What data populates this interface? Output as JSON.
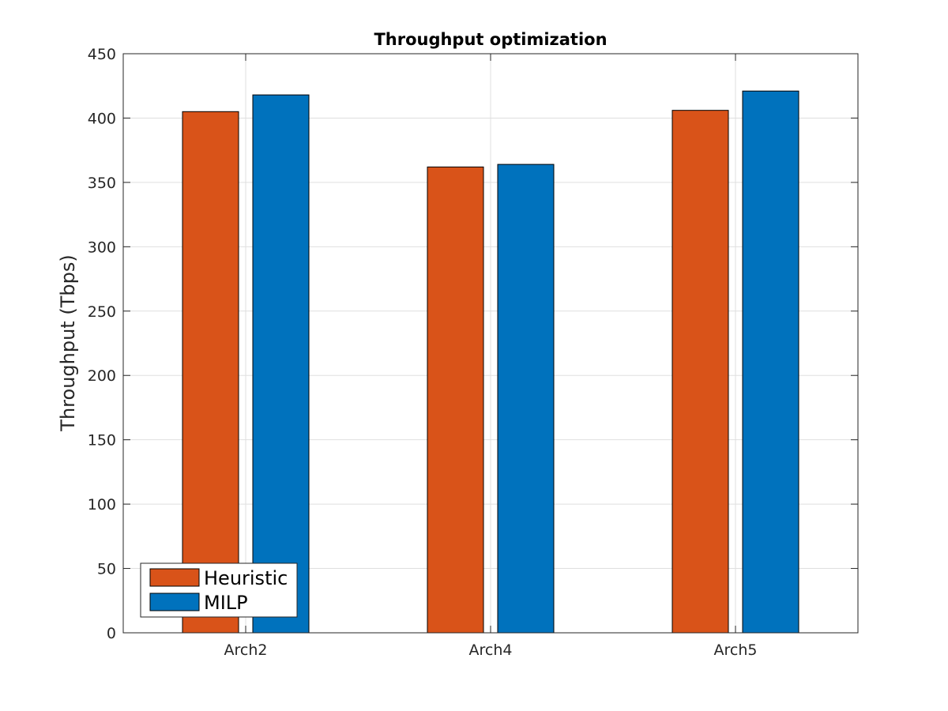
{
  "chart_data": {
    "type": "bar",
    "title": "Throughput optimization",
    "xlabel": "",
    "ylabel": "Throughput (Tbps)",
    "categories": [
      "Arch2",
      "Arch4",
      "Arch5"
    ],
    "series": [
      {
        "name": "Heuristic",
        "color": "#d95319",
        "values": [
          405,
          362,
          406
        ]
      },
      {
        "name": "MILP",
        "color": "#0072bd",
        "values": [
          418,
          364,
          421
        ]
      }
    ],
    "ylim": [
      0,
      450
    ],
    "yticks": [
      0,
      50,
      100,
      150,
      200,
      250,
      300,
      350,
      400,
      450
    ],
    "grid": true,
    "legend_location": "bottom-left"
  }
}
